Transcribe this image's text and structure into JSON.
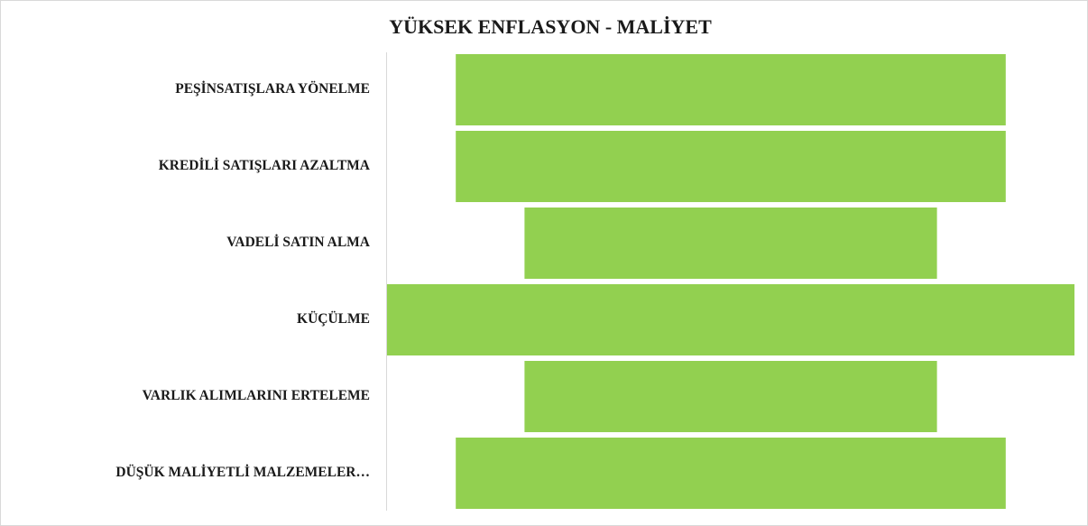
{
  "chart_data": {
    "type": "funnel",
    "title": "YÜKSEK ENFLASYON - MALİYET",
    "categories": [
      "PEŞİNSATIŞLARA YÖNELME",
      "KREDİLİ SATIŞLARI AZALTMA",
      "VADELİ SATIN ALMA",
      "KÜÇÜLME",
      "VARLIK ALIMLARINI ERTELEME",
      "DÜŞÜK MALİYETLİ MALZEMELER…"
    ],
    "values": [
      4,
      4,
      3,
      5,
      3,
      4
    ],
    "color": "#92d050"
  }
}
